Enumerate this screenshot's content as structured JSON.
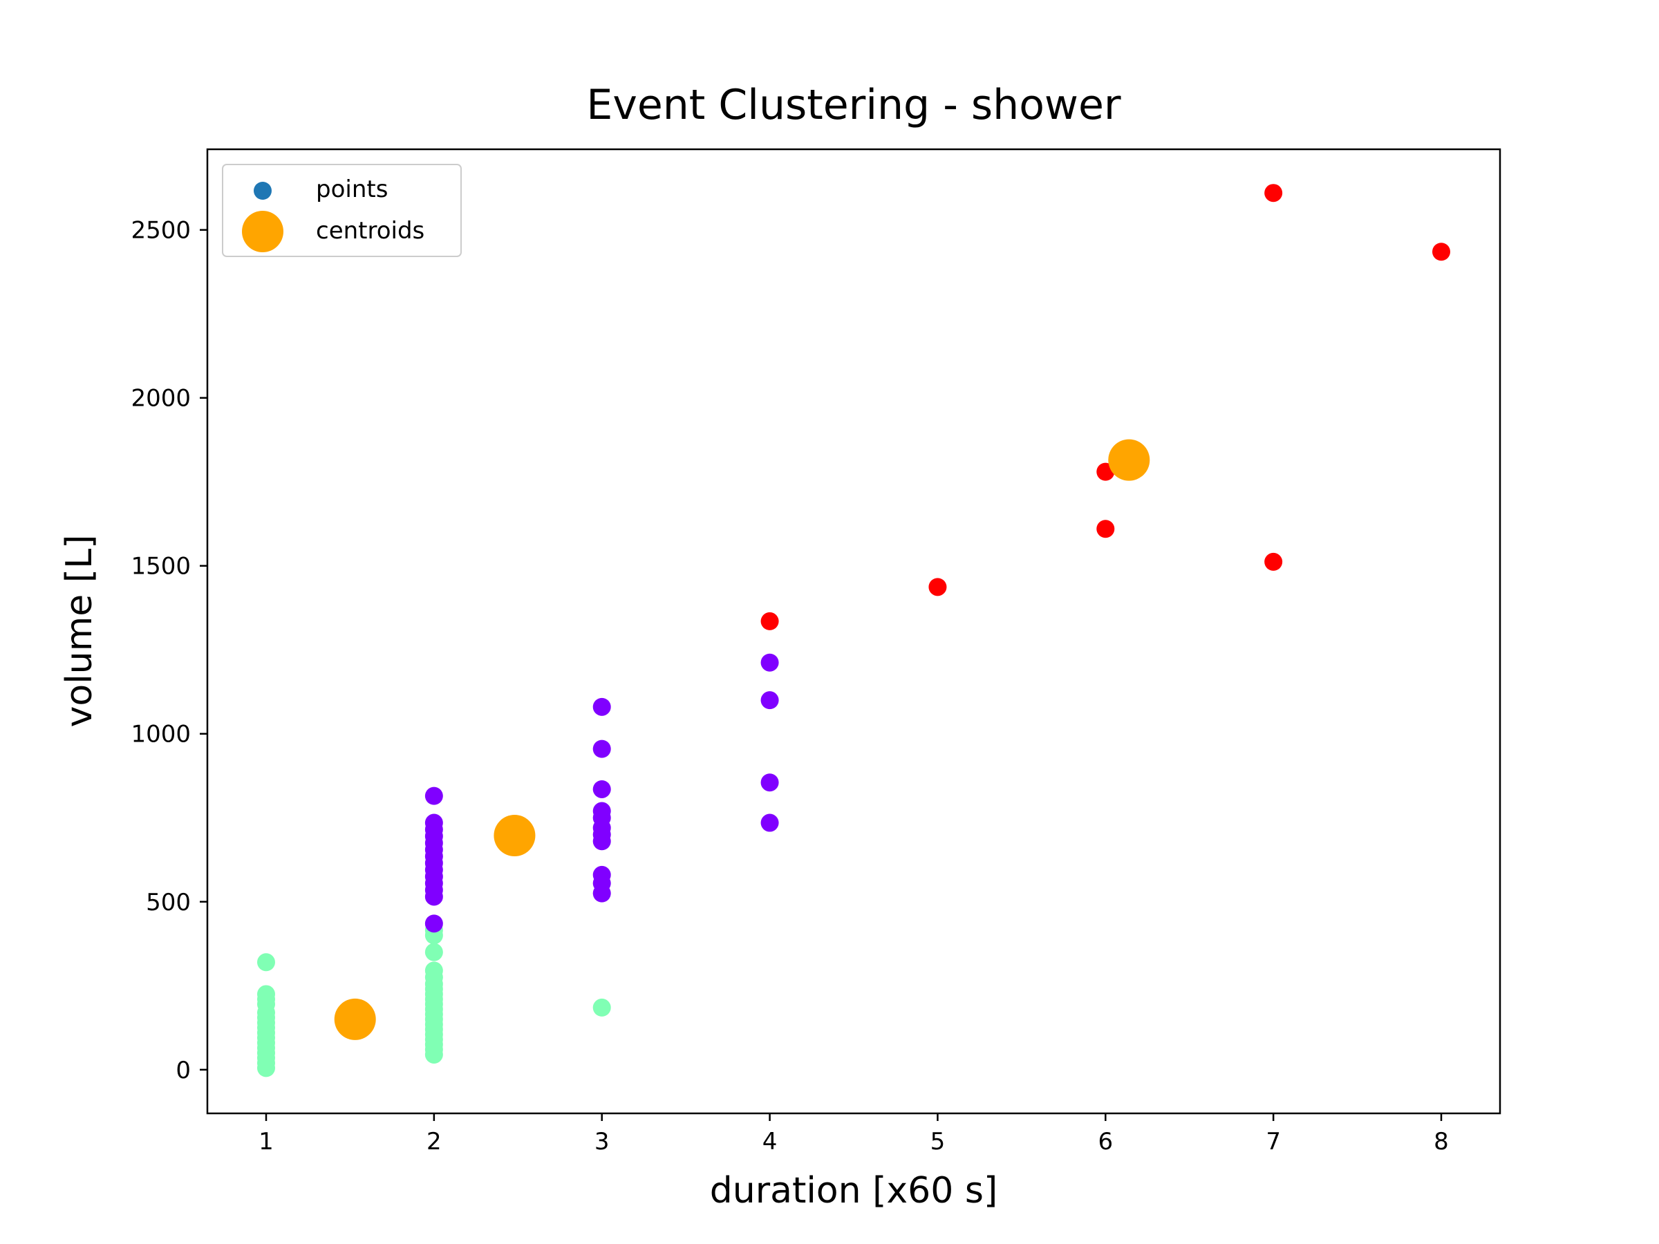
{
  "chart_data": {
    "type": "scatter",
    "title": "Event Clustering - shower",
    "xlabel": "duration [x60 s]",
    "ylabel": "volume [L]",
    "xlim": [
      0.65,
      8.35
    ],
    "ylim": [
      -130,
      2740
    ],
    "xticks": [
      1,
      2,
      3,
      4,
      5,
      6,
      7,
      8
    ],
    "yticks": [
      0,
      500,
      1000,
      1500,
      2000,
      2500
    ],
    "grid": false,
    "legend_position": "upper-left",
    "legend": [
      {
        "label": "points",
        "color": "#1f77b4",
        "marker": "small-circle"
      },
      {
        "label": "centroids",
        "color": "#ffa500",
        "marker": "large-circle"
      }
    ],
    "series": [
      {
        "color": "#80ffb4",
        "points": [
          [
            1,
            320
          ],
          [
            1,
            225
          ],
          [
            1,
            210
          ],
          [
            1,
            195
          ],
          [
            1,
            170
          ],
          [
            1,
            155
          ],
          [
            1,
            140
          ],
          [
            1,
            125
          ],
          [
            1,
            110
          ],
          [
            1,
            95
          ],
          [
            1,
            80
          ],
          [
            1,
            65
          ],
          [
            1,
            50
          ],
          [
            1,
            35
          ],
          [
            1,
            20
          ],
          [
            1,
            5
          ],
          [
            2,
            415
          ],
          [
            2,
            400
          ],
          [
            2,
            350
          ],
          [
            2,
            295
          ],
          [
            2,
            275
          ],
          [
            2,
            255
          ],
          [
            2,
            240
          ],
          [
            2,
            225
          ],
          [
            2,
            210
          ],
          [
            2,
            195
          ],
          [
            2,
            180
          ],
          [
            2,
            165
          ],
          [
            2,
            150
          ],
          [
            2,
            135
          ],
          [
            2,
            120
          ],
          [
            2,
            105
          ],
          [
            2,
            90
          ],
          [
            2,
            75
          ],
          [
            2,
            60
          ],
          [
            2,
            45
          ],
          [
            3,
            185
          ]
        ]
      },
      {
        "color": "#8000ff",
        "points": [
          [
            2,
            815
          ],
          [
            2,
            735
          ],
          [
            2,
            715
          ],
          [
            2,
            695
          ],
          [
            2,
            675
          ],
          [
            2,
            655
          ],
          [
            2,
            635
          ],
          [
            2,
            615
          ],
          [
            2,
            595
          ],
          [
            2,
            575
          ],
          [
            2,
            555
          ],
          [
            2,
            535
          ],
          [
            2,
            515
          ],
          [
            2,
            435
          ],
          [
            3,
            1080
          ],
          [
            3,
            955
          ],
          [
            3,
            835
          ],
          [
            3,
            770
          ],
          [
            3,
            750
          ],
          [
            3,
            720
          ],
          [
            3,
            700
          ],
          [
            3,
            680
          ],
          [
            3,
            580
          ],
          [
            3,
            555
          ],
          [
            3,
            525
          ],
          [
            4,
            1212
          ],
          [
            4,
            1100
          ],
          [
            4,
            855
          ],
          [
            4,
            735
          ]
        ]
      },
      {
        "color": "#ff0000",
        "points": [
          [
            4,
            1335
          ],
          [
            5,
            1437
          ],
          [
            6,
            1780
          ],
          [
            6,
            1610
          ],
          [
            7,
            2610
          ],
          [
            7,
            1512
          ],
          [
            8,
            2435
          ]
        ]
      }
    ],
    "centroids": {
      "color": "#ffa500",
      "points": [
        [
          1.53,
          150
        ],
        [
          2.48,
          697
        ],
        [
          6.14,
          1815
        ]
      ]
    }
  }
}
